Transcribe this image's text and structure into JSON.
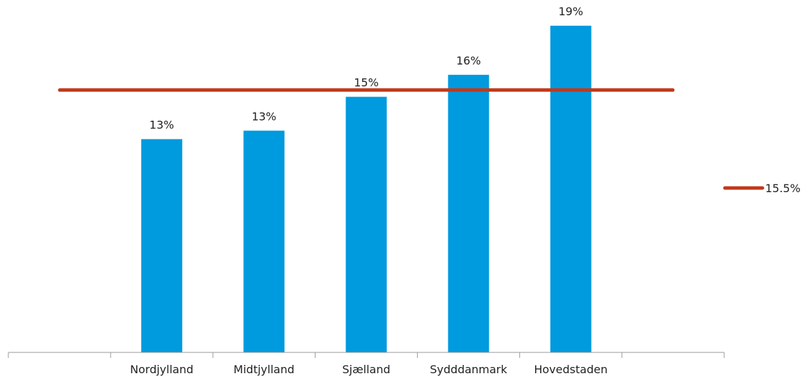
{
  "chart_data": {
    "type": "bar",
    "categories": [
      "",
      "Nordjylland",
      "Midtjylland",
      "Sjælland",
      "Sydddanmark",
      "Hovedstaden",
      ""
    ],
    "values": [
      null,
      12.6,
      13.1,
      15.1,
      16.4,
      19.3,
      null
    ],
    "data_labels": [
      "",
      "13%",
      "13%",
      "15%",
      "16%",
      "19%",
      ""
    ],
    "ylim": [
      0,
      20
    ],
    "grid": false,
    "reference_line": {
      "label": "15.5%",
      "value": 15.5
    },
    "legend": {
      "position": "right"
    },
    "colors": {
      "bar": "#009ADE",
      "line": "#C0391B",
      "axis": "#9A9A9A"
    }
  }
}
